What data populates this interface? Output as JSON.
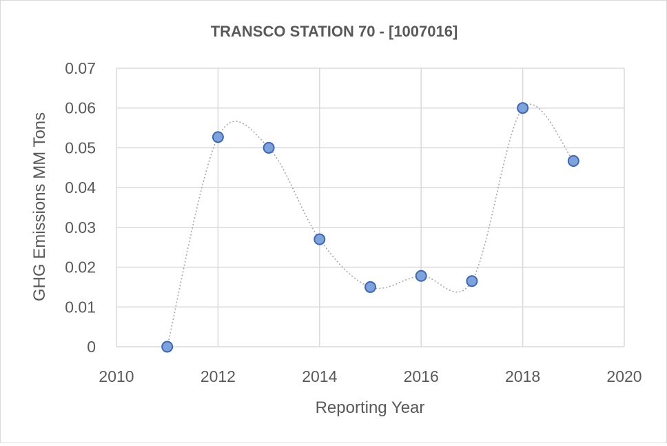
{
  "chart_data": {
    "type": "scatter",
    "title": "TRANSCO STATION 70 - [1007016]",
    "xlabel": "Reporting Year",
    "ylabel": "GHG Emissions MM Tons",
    "xlim": [
      2010,
      2020
    ],
    "ylim": [
      0,
      0.07
    ],
    "x_ticks": [
      "2010",
      "2012",
      "2014",
      "2016",
      "2018",
      "2020"
    ],
    "y_ticks": [
      "0",
      "0.01",
      "0.02",
      "0.03",
      "0.04",
      "0.05",
      "0.06",
      "0.07"
    ],
    "grid": true,
    "smoothed_line": true,
    "series": [
      {
        "x": [
          2011,
          2012,
          2013,
          2014,
          2015,
          2016,
          2017,
          2018,
          2019
        ],
        "y": [
          0.0,
          0.0527,
          0.05,
          0.027,
          0.015,
          0.0178,
          0.0165,
          0.06,
          0.0467
        ],
        "color": "#7ea2dc"
      }
    ]
  }
}
